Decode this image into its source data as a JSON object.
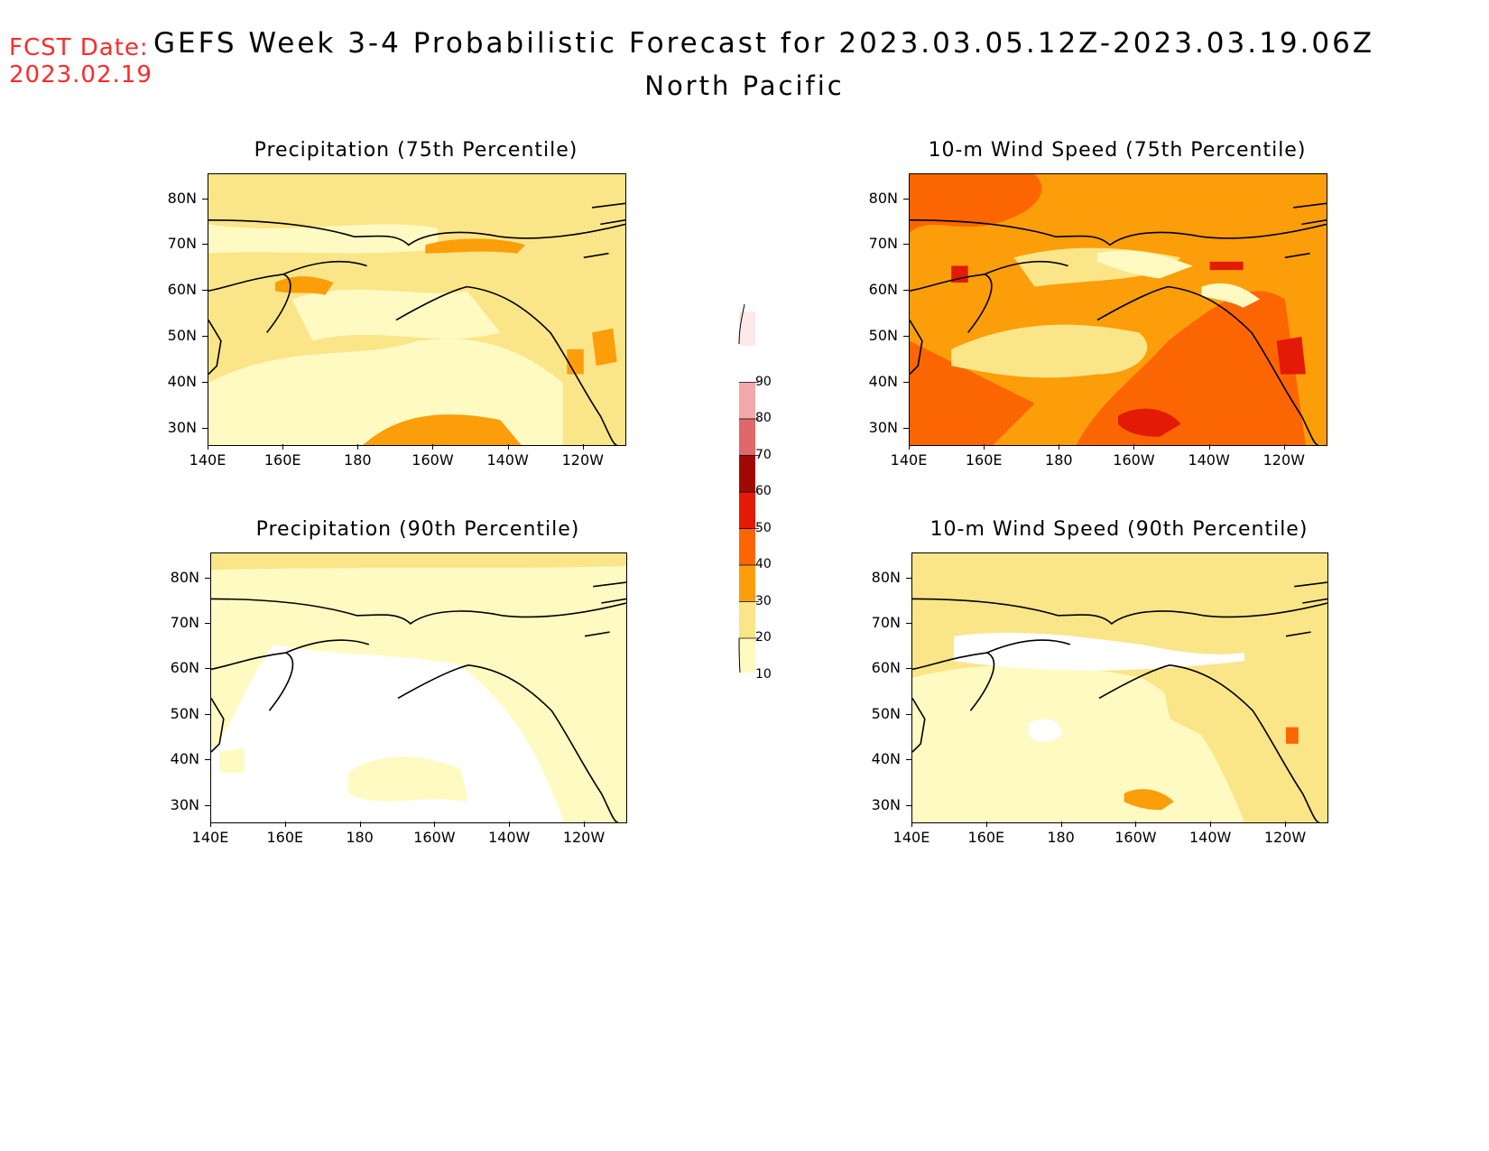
{
  "header": {
    "fcst_label": "FCST Date:",
    "fcst_date": "2023.02.19",
    "title": "GEFS Week 3-4 Probabilistic Forecast for 2023.03.05.12Z-2023.03.19.06Z",
    "region": "North Pacific"
  },
  "panels": [
    {
      "title": "Precipitation (75th Percentile)",
      "base": "#fbe589",
      "patches": "precip75"
    },
    {
      "title": "10-m Wind Speed (75th Percentile)",
      "base": "#fb9e0a",
      "patches": "wind75"
    },
    {
      "title": "Precipitation (90th Percentile)",
      "base": "#fffac2",
      "patches": "precip90"
    },
    {
      "title": "10-m Wind Speed (90th Percentile)",
      "base": "#fbe589",
      "patches": "wind90"
    }
  ],
  "axes": {
    "lat_ticks": [
      "80N",
      "70N",
      "60N",
      "50N",
      "40N",
      "30N"
    ],
    "lon_ticks": [
      "140E",
      "160E",
      "180",
      "160W",
      "140W",
      "120W"
    ]
  },
  "colorbar": {
    "levels": [
      "10",
      "20",
      "30",
      "40",
      "50",
      "60",
      "70",
      "80",
      "90"
    ],
    "colors": [
      "#fffac2",
      "#fbe589",
      "#fb9e0a",
      "#fc6602",
      "#e21a06",
      "#a10a04",
      "#e0686a",
      "#f3a8ab",
      "#fde8ea"
    ]
  }
}
